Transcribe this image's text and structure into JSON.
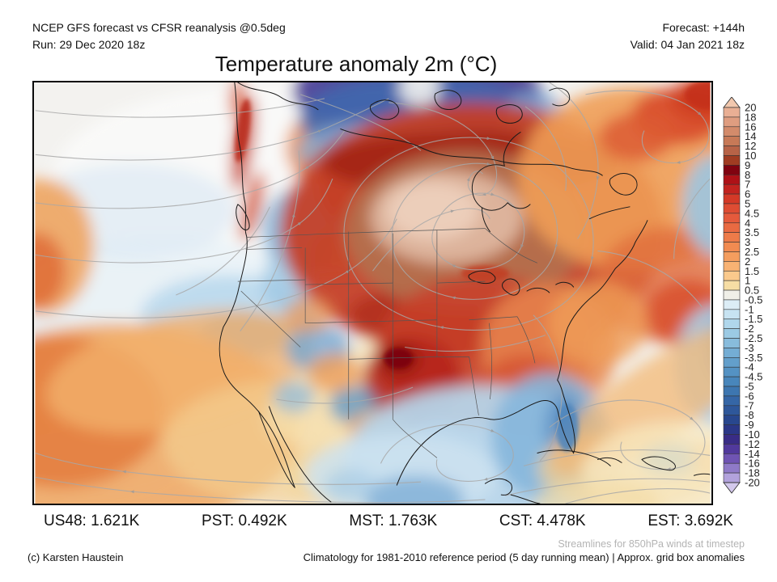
{
  "header": {
    "left_line1": "NCEP GFS forecast vs CFSR reanalysis @0.5deg",
    "left_line2": "Run: 29 Dec 2020 18z",
    "right_line1": "Forecast: +144h",
    "right_line2": "Valid: 04 Jan 2021 18z"
  },
  "title": "Temperature anomaly 2m (°C)",
  "stats": [
    {
      "label": "US48",
      "value": "1.621K",
      "display": "US48: 1.621K"
    },
    {
      "label": "PST",
      "value": "0.492K",
      "display": "PST: 0.492K"
    },
    {
      "label": "MST",
      "value": "1.763K",
      "display": "MST: 1.763K"
    },
    {
      "label": "CST",
      "value": "4.478K",
      "display": "CST: 4.478K"
    },
    {
      "label": "EST",
      "value": "3.692K",
      "display": "EST: 3.692K"
    }
  ],
  "footer": {
    "streamline_note": "Streamlines for 850hPa winds at timestep",
    "credit": "(c) Karsten Haustein",
    "climatology_note": "Climatology for 1981-2010 reference period (5 day running mean) | Approx. grid box anomalies"
  },
  "colorbar": {
    "unit": "°C",
    "labels": [
      "20",
      "18",
      "16",
      "14",
      "12",
      "10",
      "9",
      "8",
      "7",
      "6",
      "5",
      "4.5",
      "4",
      "3.5",
      "3",
      "2.5",
      "2",
      "1.5",
      "1",
      "0.5",
      "-0.5",
      "-1",
      "-1.5",
      "-2",
      "-2.5",
      "-3",
      "-3.5",
      "-4",
      "-4.5",
      "-5",
      "-6",
      "-7",
      "-8",
      "-9",
      "-10",
      "-12",
      "-14",
      "-16",
      "-18",
      "-20"
    ],
    "cells": [
      "#e9af94",
      "#df9d80",
      "#d38b6b",
      "#c77957",
      "#b76347",
      "#a03c22",
      "#800310",
      "#ae1117",
      "#c2231f",
      "#d43927",
      "#de4c33",
      "#e55a3c",
      "#e96a42",
      "#ed7b49",
      "#f18b51",
      "#f49d5e",
      "#f8b273",
      "#fac98c",
      "#f6dda4",
      "#f0efe8",
      "#dcedf6",
      "#c7e3f2",
      "#b0d7ec",
      "#9bcae4",
      "#88bcdc",
      "#74add4",
      "#639fcb",
      "#5492c3",
      "#4886bb",
      "#3d76b0",
      "#3566a6",
      "#2e579a",
      "#28478e",
      "#2b3787",
      "#392c86",
      "#51399c",
      "#6f54b3",
      "#8f7ac8",
      "#b2a2dc"
    ],
    "arrow_top_color": "#f2c8ae",
    "arrow_bottom_color": "#d3c8ec",
    "outline_color": "#333333"
  },
  "map": {
    "region": "North America",
    "field": "2m temperature anomaly",
    "overlay": "850hPa wind streamlines",
    "notable_anomalies": [
      {
        "area": "Central Canada (Hudson Bay west)",
        "sign": "warm",
        "approx_peak": "+10 to +20"
      },
      {
        "area": "Canadian Arctic islands",
        "sign": "cold",
        "approx_peak": "-10 to -20"
      },
      {
        "area": "US Midwest / South",
        "sign": "warm",
        "approx_peak": "+4 to +9"
      },
      {
        "area": "Gulf of Mexico / Florida",
        "sign": "cold",
        "approx_peak": "-1 to -4"
      },
      {
        "area": "Northeast Pacific",
        "sign": "neutral to cool",
        "approx_peak": "-1 to -2"
      },
      {
        "area": "Subtropical Atlantic",
        "sign": "warm",
        "approx_peak": "+2 to +6"
      }
    ],
    "colors": {
      "ocean_base": "#f3f2ef",
      "streamline": "#a8a8a8",
      "coastline": "#1a1a1a",
      "state_border": "#555555"
    }
  }
}
